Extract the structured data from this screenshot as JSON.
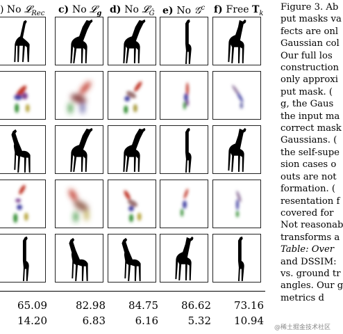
{
  "columns": [
    {
      "prefix": ") ",
      "label": "No ",
      "symbol": "𝓛",
      "sub": "Rec"
    },
    {
      "prefix": "c) ",
      "label": "No ",
      "symbol": "𝓛",
      "sub": "g"
    },
    {
      "prefix": "d) ",
      "label": "No ",
      "symbol": "𝓛",
      "sub": "Ĝ"
    },
    {
      "prefix": "e) ",
      "label": "No ",
      "symbol": "𝒢",
      "sub": "c"
    },
    {
      "prefix": "f) ",
      "label": "Free ",
      "symbol": "T",
      "sub": "k"
    }
  ],
  "metrics": {
    "row1": [
      "65.09",
      "82.98",
      "84.75",
      "86.62",
      "73.16"
    ],
    "row2": [
      "14.20",
      "6.83",
      "6.16",
      "5.32",
      "10.94"
    ]
  },
  "caption_lines": [
    "Figure 3. Ab",
    "put masks va",
    "fects are onl",
    "Gaussian col",
    "Our full los",
    "construction",
    "only approxi",
    "put mask. (",
    "g, the Gaus",
    "the input ma",
    "correct mask",
    "Gaussians. (",
    "the self-supe",
    "sion cases o",
    "outs are not",
    "formation. (",
    "resentation f",
    "covered for",
    "Not reasonab",
    "transforms a",
    "Table: Over",
    "and DSSIM:",
    "vs. ground tr",
    "angles. Our g",
    "metrics d"
  ],
  "watermark": "@稀土掘金技术社区",
  "colors": {
    "red": "#c0392b",
    "green": "#2e8b2e",
    "blue": "#3f3fa0",
    "purple": "#7a3f8f",
    "silhouette": "#000000"
  }
}
